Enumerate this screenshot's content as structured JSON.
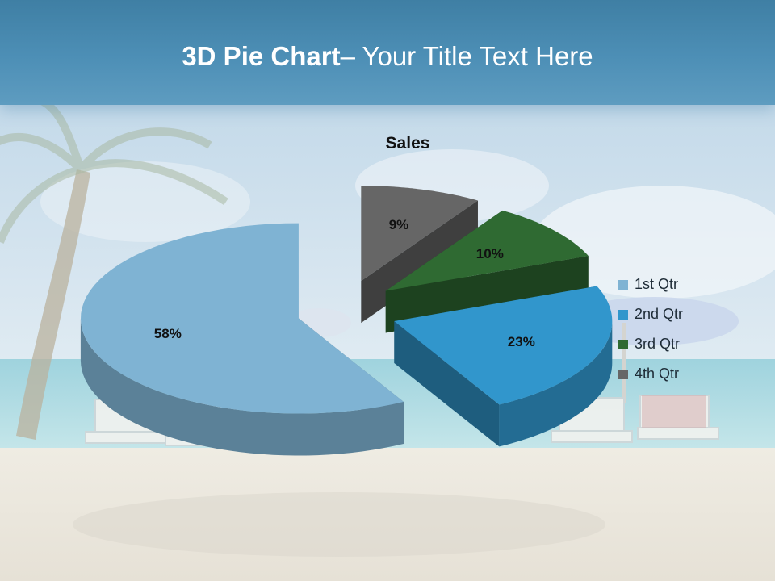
{
  "slide": {
    "title_bold": "3D Pie Chart",
    "title_rest": "– Your Title Text Here"
  },
  "chart_data": {
    "type": "pie",
    "title": "Sales",
    "categories": [
      "1st Qtr",
      "2nd Qtr",
      "3rd Qtr",
      "4th Qtr"
    ],
    "values": [
      58,
      23,
      10,
      9
    ],
    "labels": [
      "58%",
      "23%",
      "10%",
      "9%"
    ],
    "colors": [
      "#7fb3d3",
      "#3196cc",
      "#2f6a32",
      "#666666"
    ],
    "exploded": true,
    "three_d": true,
    "legend_position": "right"
  }
}
